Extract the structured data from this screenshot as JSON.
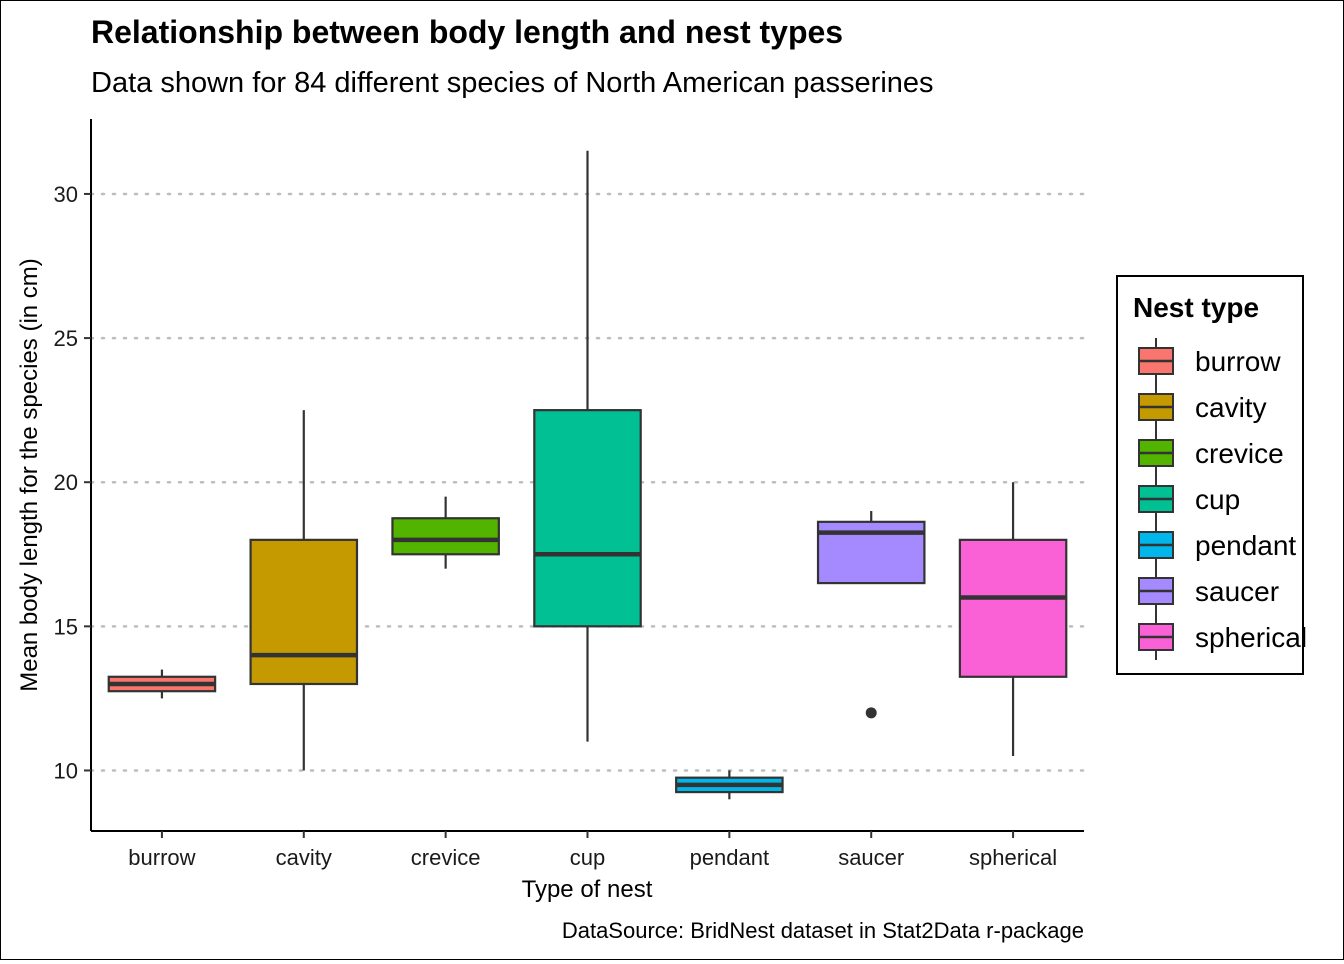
{
  "chart_data": {
    "type": "box",
    "title": "Relationship between body length and nest types",
    "subtitle": "Data shown for 84 different species of North American passerines",
    "xlabel": "Type of nest",
    "ylabel": "Mean body length for the species (in cm)",
    "caption": "DataSource: BridNest dataset in Stat2Data r-package",
    "ylim": [
      7.9,
      32.6
    ],
    "yticks": [
      "10",
      "15",
      "20",
      "25",
      "30"
    ],
    "grid": "horizontal dotted",
    "legend": {
      "title": "Nest type",
      "position": "right"
    },
    "categories": [
      "burrow",
      "cavity",
      "crevice",
      "cup",
      "pendant",
      "saucer",
      "spherical"
    ],
    "colors": [
      "#F8766D",
      "#C49A00",
      "#53B400",
      "#00C094",
      "#00B6EB",
      "#A58AFF",
      "#FB61D7"
    ],
    "boxes": [
      {
        "category": "burrow",
        "whisker_low": 12.5,
        "q1": 12.75,
        "median": 13.0,
        "q3": 13.25,
        "whisker_high": 13.5,
        "outliers": []
      },
      {
        "category": "cavity",
        "whisker_low": 10.0,
        "q1": 13.0,
        "median": 14.0,
        "q3": 18.0,
        "whisker_high": 22.5,
        "outliers": []
      },
      {
        "category": "crevice",
        "whisker_low": 17.0,
        "q1": 17.5,
        "median": 18.0,
        "q3": 18.75,
        "whisker_high": 19.5,
        "outliers": []
      },
      {
        "category": "cup",
        "whisker_low": 11.0,
        "q1": 15.0,
        "median": 17.5,
        "q3": 22.5,
        "whisker_high": 31.5,
        "outliers": []
      },
      {
        "category": "pendant",
        "whisker_low": 9.0,
        "q1": 9.25,
        "median": 9.5,
        "q3": 9.75,
        "whisker_high": 10.0,
        "outliers": []
      },
      {
        "category": "saucer",
        "whisker_low": 16.5,
        "q1": 16.5,
        "median": 18.25,
        "q3": 18.625,
        "whisker_high": 19.0,
        "outliers": [
          12.0
        ]
      },
      {
        "category": "spherical",
        "whisker_low": 10.5,
        "q1": 13.25,
        "median": 16.0,
        "q3": 18.0,
        "whisker_high": 20.0,
        "outliers": []
      }
    ]
  }
}
